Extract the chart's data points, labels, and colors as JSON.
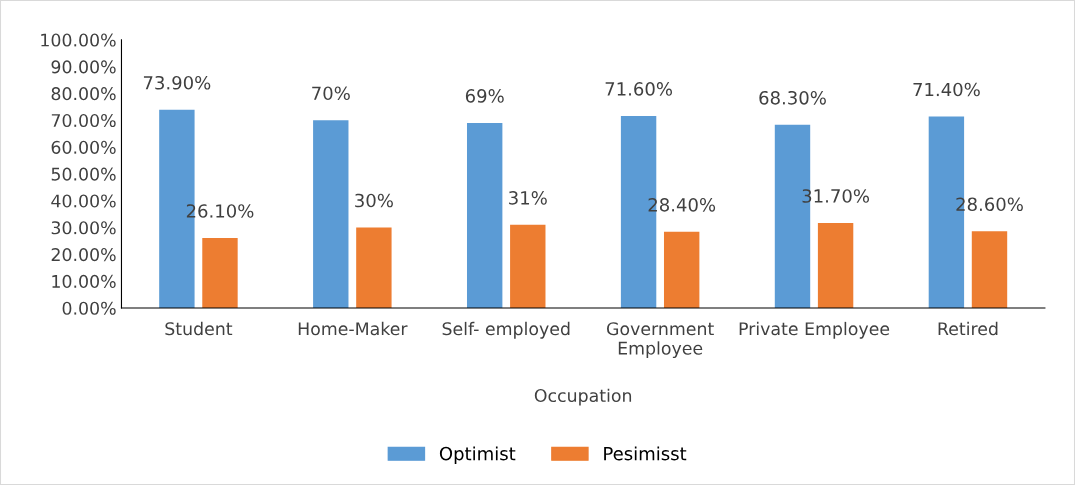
{
  "chart_data": {
    "type": "bar",
    "xlabel": "Occupation",
    "categories": [
      "Student",
      "Home-Maker",
      "Self- employed",
      "Government\nEmployee",
      "Private Employee",
      "Retired"
    ],
    "series": [
      {
        "name": "Optimist",
        "color": "#5b9bd5",
        "values": [
          73.9,
          70,
          69,
          71.6,
          68.3,
          71.4
        ],
        "value_labels": [
          "73.90%",
          "70%",
          "69%",
          "71.60%",
          "68.30%",
          "71.40%"
        ]
      },
      {
        "name": "Pesimisst",
        "color": "#ed7d31",
        "values": [
          26.1,
          30,
          31,
          28.4,
          31.7,
          28.6
        ],
        "value_labels": [
          "26.10%",
          "30%",
          "31%",
          "28.40%",
          "31.70%",
          "28.60%"
        ]
      }
    ],
    "ylim": [
      0,
      100
    ],
    "yticks": [
      {
        "value": 0,
        "label": "0.00%"
      },
      {
        "value": 10,
        "label": "10.00%"
      },
      {
        "value": 20,
        "label": "20.00%"
      },
      {
        "value": 30,
        "label": "30.00%"
      },
      {
        "value": 40,
        "label": "40.00%"
      },
      {
        "value": 50,
        "label": "50.00%"
      },
      {
        "value": 60,
        "label": "60.00%"
      },
      {
        "value": 70,
        "label": "70.00%"
      },
      {
        "value": 80,
        "label": "80.00%"
      },
      {
        "value": 90,
        "label": "90.00%"
      },
      {
        "value": 100,
        "label": "100.00%"
      }
    ],
    "grid": false,
    "legend": "bottom"
  }
}
